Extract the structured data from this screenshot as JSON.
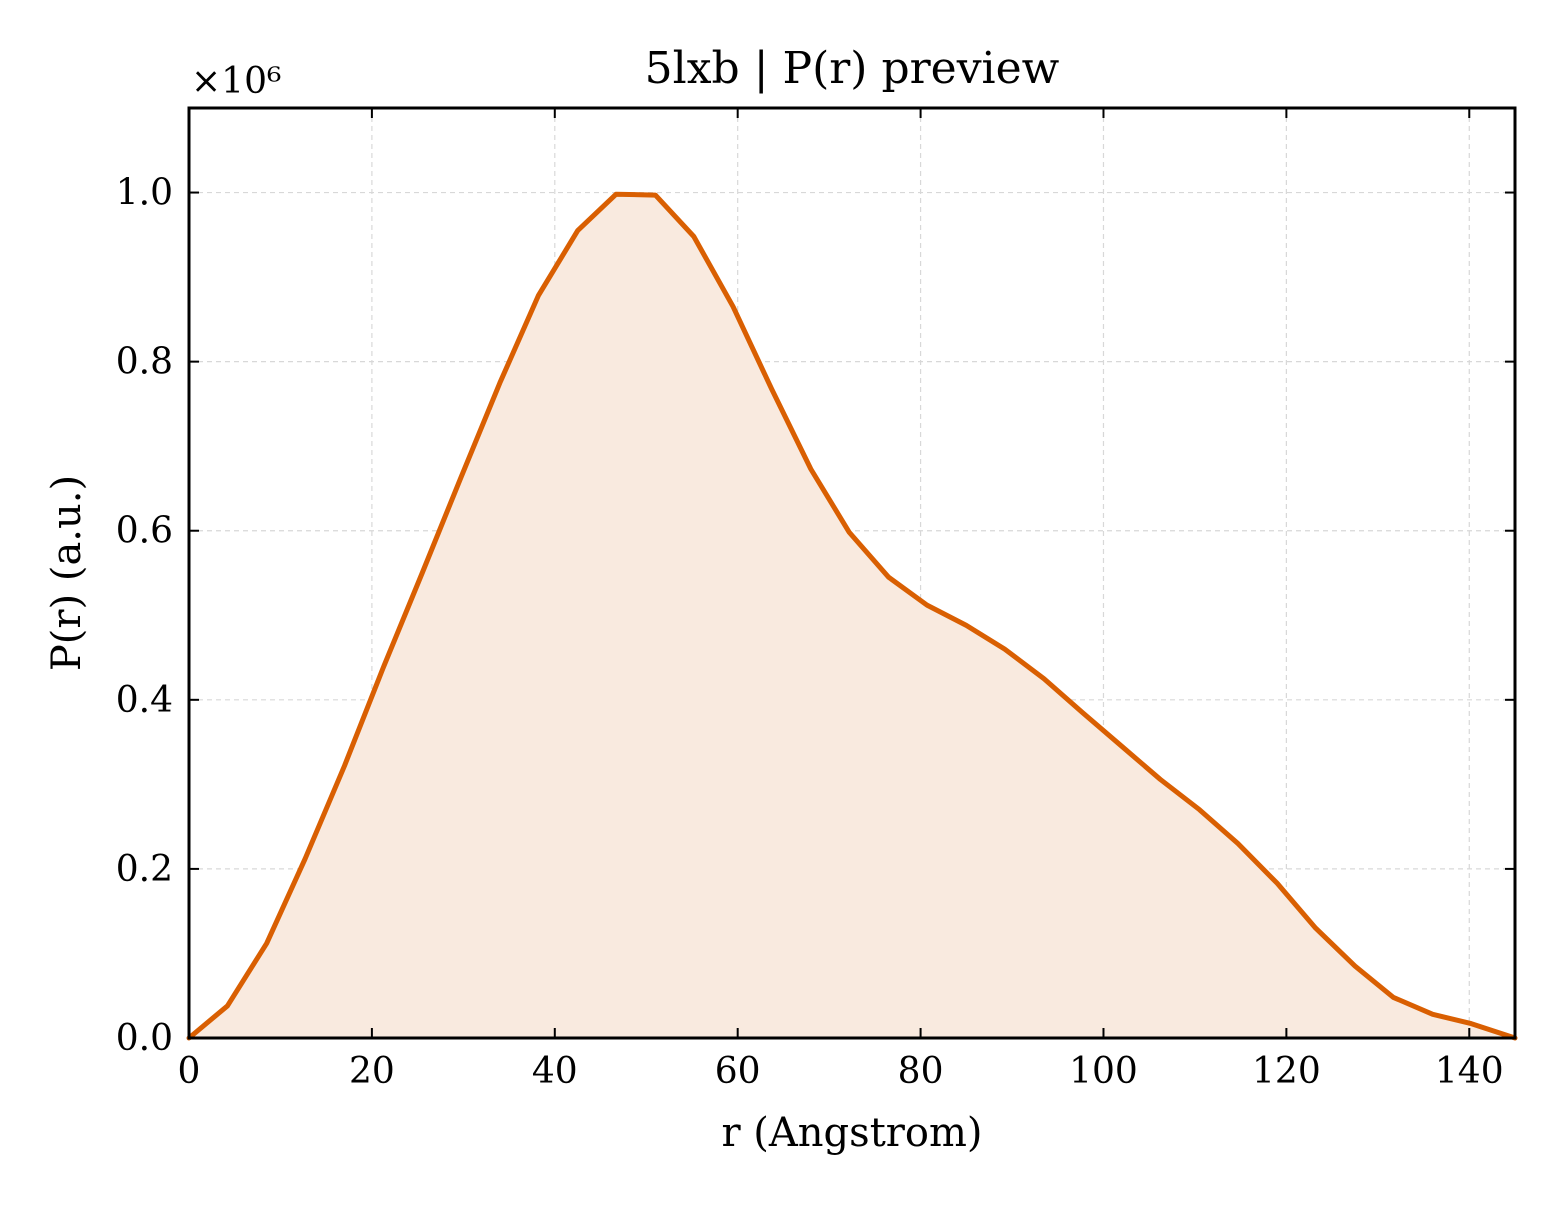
{
  "chart_data": {
    "type": "area",
    "title": "5lxb | P(r) preview",
    "xlabel": "r (Angstrom)",
    "ylabel": "P(r) (a.u.)",
    "y_offset_text": "×10⁶",
    "xlim": [
      0,
      145
    ],
    "ylim": [
      0,
      1.1
    ],
    "xticks": [
      0,
      20,
      40,
      60,
      80,
      100,
      120,
      140
    ],
    "xtick_labels": [
      "0",
      "20",
      "40",
      "60",
      "80",
      "100",
      "120",
      "140"
    ],
    "yticks": [
      0,
      0.2,
      0.4,
      0.6,
      0.8,
      1.0
    ],
    "ytick_labels": [
      "0.0",
      "0.2",
      "0.4",
      "0.6",
      "0.8",
      "1.0"
    ],
    "grid": true,
    "color": "#d95f02",
    "fill_color": "#f9eadf",
    "series": [
      {
        "x": [
          0,
          4.2,
          8.5,
          12.7,
          17.0,
          21.2,
          25.5,
          29.7,
          34.0,
          38.2,
          42.5,
          46.7,
          51.0,
          55.2,
          59.5,
          63.7,
          68.0,
          72.2,
          76.5,
          80.7,
          85.0,
          89.2,
          93.5,
          97.7,
          102.0,
          106.2,
          110.5,
          114.7,
          119.0,
          123.2,
          127.5,
          131.7,
          136.0,
          140.2,
          145.0
        ],
        "y": [
          0.0,
          0.038,
          0.112,
          0.212,
          0.322,
          0.437,
          0.55,
          0.662,
          0.775,
          0.878,
          0.955,
          0.998,
          0.997,
          0.948,
          0.865,
          0.768,
          0.673,
          0.598,
          0.545,
          0.512,
          0.488,
          0.46,
          0.425,
          0.385,
          0.345,
          0.306,
          0.27,
          0.23,
          0.183,
          0.13,
          0.085,
          0.048,
          0.028,
          0.017,
          0.0
        ]
      }
    ]
  }
}
